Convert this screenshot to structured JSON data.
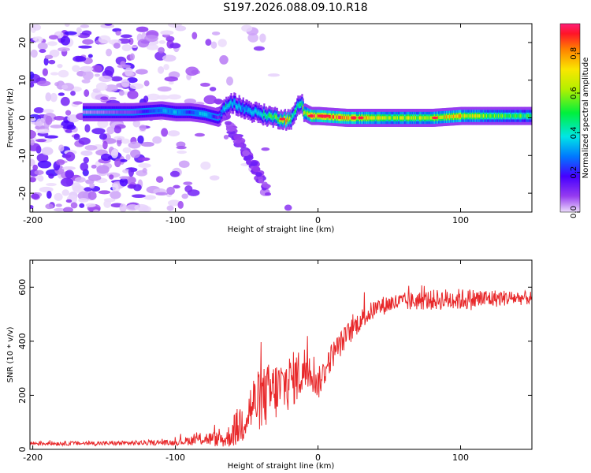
{
  "title": "S197.2026.088.09.10.R18",
  "chart_data": [
    {
      "type": "heatmap",
      "xlabel": "Height of straight line (km)",
      "ylabel": "Frequency (Hz)",
      "xlim": [
        -202,
        150
      ],
      "ylim": [
        -25,
        25
      ],
      "xticks": [
        "-200",
        "-100",
        "0",
        "100"
      ],
      "xtick_values": [
        -200,
        -100,
        0,
        100
      ],
      "yticks": [
        "-20",
        "-10",
        "0",
        "10",
        "20"
      ],
      "ytick_values": [
        -20,
        -10,
        0,
        10,
        20
      ],
      "colorbar": {
        "label": "Normalized spectral amplitude",
        "range": [
          0.0,
          0.95
        ],
        "ticks": [
          "0.0",
          "0.2",
          "0.4",
          "0.6",
          "0.8"
        ],
        "tick_values": [
          0.0,
          0.2,
          0.4,
          0.6,
          0.8
        ]
      },
      "ridge_line": {
        "description_points_x": [
          -160,
          -130,
          -110,
          -100,
          -90,
          -80,
          -70,
          -65,
          -60,
          -50,
          -40,
          -30,
          -22,
          -18,
          -15,
          -12,
          -10,
          -5,
          0,
          20,
          50,
          80,
          100,
          120,
          150
        ],
        "frequency_hz": [
          1.5,
          1.5,
          2,
          1.5,
          1.5,
          1,
          0,
          3,
          4,
          2,
          1,
          0,
          -0.5,
          0,
          3,
          4,
          1.5,
          0.5,
          0.5,
          0,
          0,
          0,
          0.5,
          0.5,
          0.5
        ],
        "amplitude": [
          0.05,
          0.1,
          0.3,
          0.35,
          0.2,
          0.4,
          0.1,
          0.45,
          0.35,
          0.3,
          0.45,
          0.55,
          0.8,
          0.4,
          0.5,
          0.55,
          0.6,
          0.9,
          0.85,
          0.85,
          0.6,
          0.7,
          0.75,
          0.55,
          0.5
        ]
      }
    },
    {
      "type": "line",
      "xlabel": "Height of straight line (km)",
      "ylabel": "SNR (10 * v/v)",
      "xlim": [
        -202,
        150
      ],
      "ylim": [
        0,
        700
      ],
      "xticks": [
        "-200",
        "-100",
        "0",
        "100"
      ],
      "xtick_values": [
        -200,
        -100,
        0,
        100
      ],
      "yticks": [
        "0",
        "200",
        "400",
        "600"
      ],
      "ytick_values": [
        0,
        200,
        400,
        600
      ],
      "series": [
        {
          "name": "SNR",
          "color": "#e8282a",
          "x": [
            -202,
            -150,
            -100,
            -80,
            -65,
            -55,
            -45,
            -35,
            -25,
            -15,
            -5,
            0,
            10,
            20,
            30,
            40,
            50,
            70,
            90,
            110,
            130,
            150
          ],
          "y": [
            22,
            22,
            25,
            40,
            35,
            90,
            170,
            200,
            230,
            270,
            310,
            240,
            350,
            420,
            480,
            520,
            540,
            550,
            555,
            555,
            560,
            560
          ],
          "noise_amplitude": [
            8,
            8,
            10,
            25,
            30,
            80,
            110,
            120,
            110,
            100,
            90,
            60,
            50,
            45,
            40,
            35,
            35,
            35,
            40,
            40,
            30,
            25
          ]
        }
      ]
    }
  ]
}
